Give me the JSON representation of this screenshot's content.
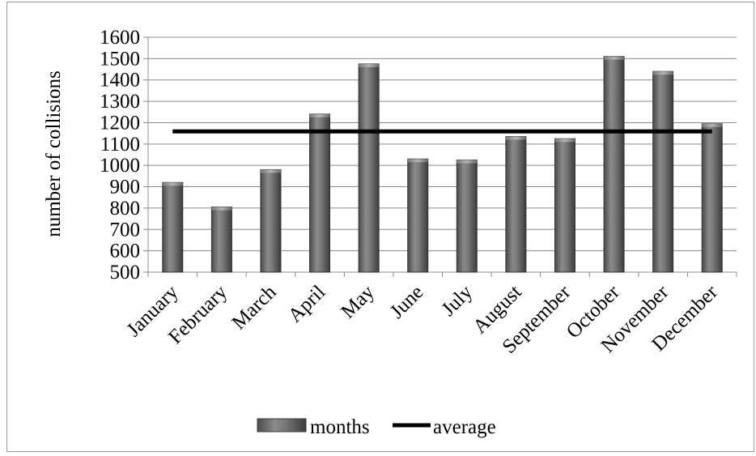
{
  "chart_data": {
    "type": "bar",
    "categories": [
      "January",
      "February",
      "March",
      "April",
      "May",
      "June",
      "July",
      "August",
      "September",
      "October",
      "November",
      "December"
    ],
    "series": [
      {
        "name": "months",
        "type": "bar",
        "color": "#5f5f5f",
        "values": [
          920,
          805,
          980,
          1240,
          1475,
          1030,
          1025,
          1135,
          1125,
          1510,
          1440,
          1195
        ]
      },
      {
        "name": "average",
        "type": "line",
        "color": "#000000",
        "values": [
          1159,
          1159,
          1159,
          1159,
          1159,
          1159,
          1159,
          1159,
          1159,
          1159,
          1159,
          1159
        ]
      }
    ],
    "title": "",
    "xlabel": "",
    "ylabel": "number of collisions",
    "ylim": [
      500,
      1600
    ],
    "yticks": [
      500,
      600,
      700,
      800,
      900,
      1000,
      1100,
      1200,
      1300,
      1400,
      1500,
      1600
    ],
    "grid": true,
    "legend": "bottom"
  }
}
